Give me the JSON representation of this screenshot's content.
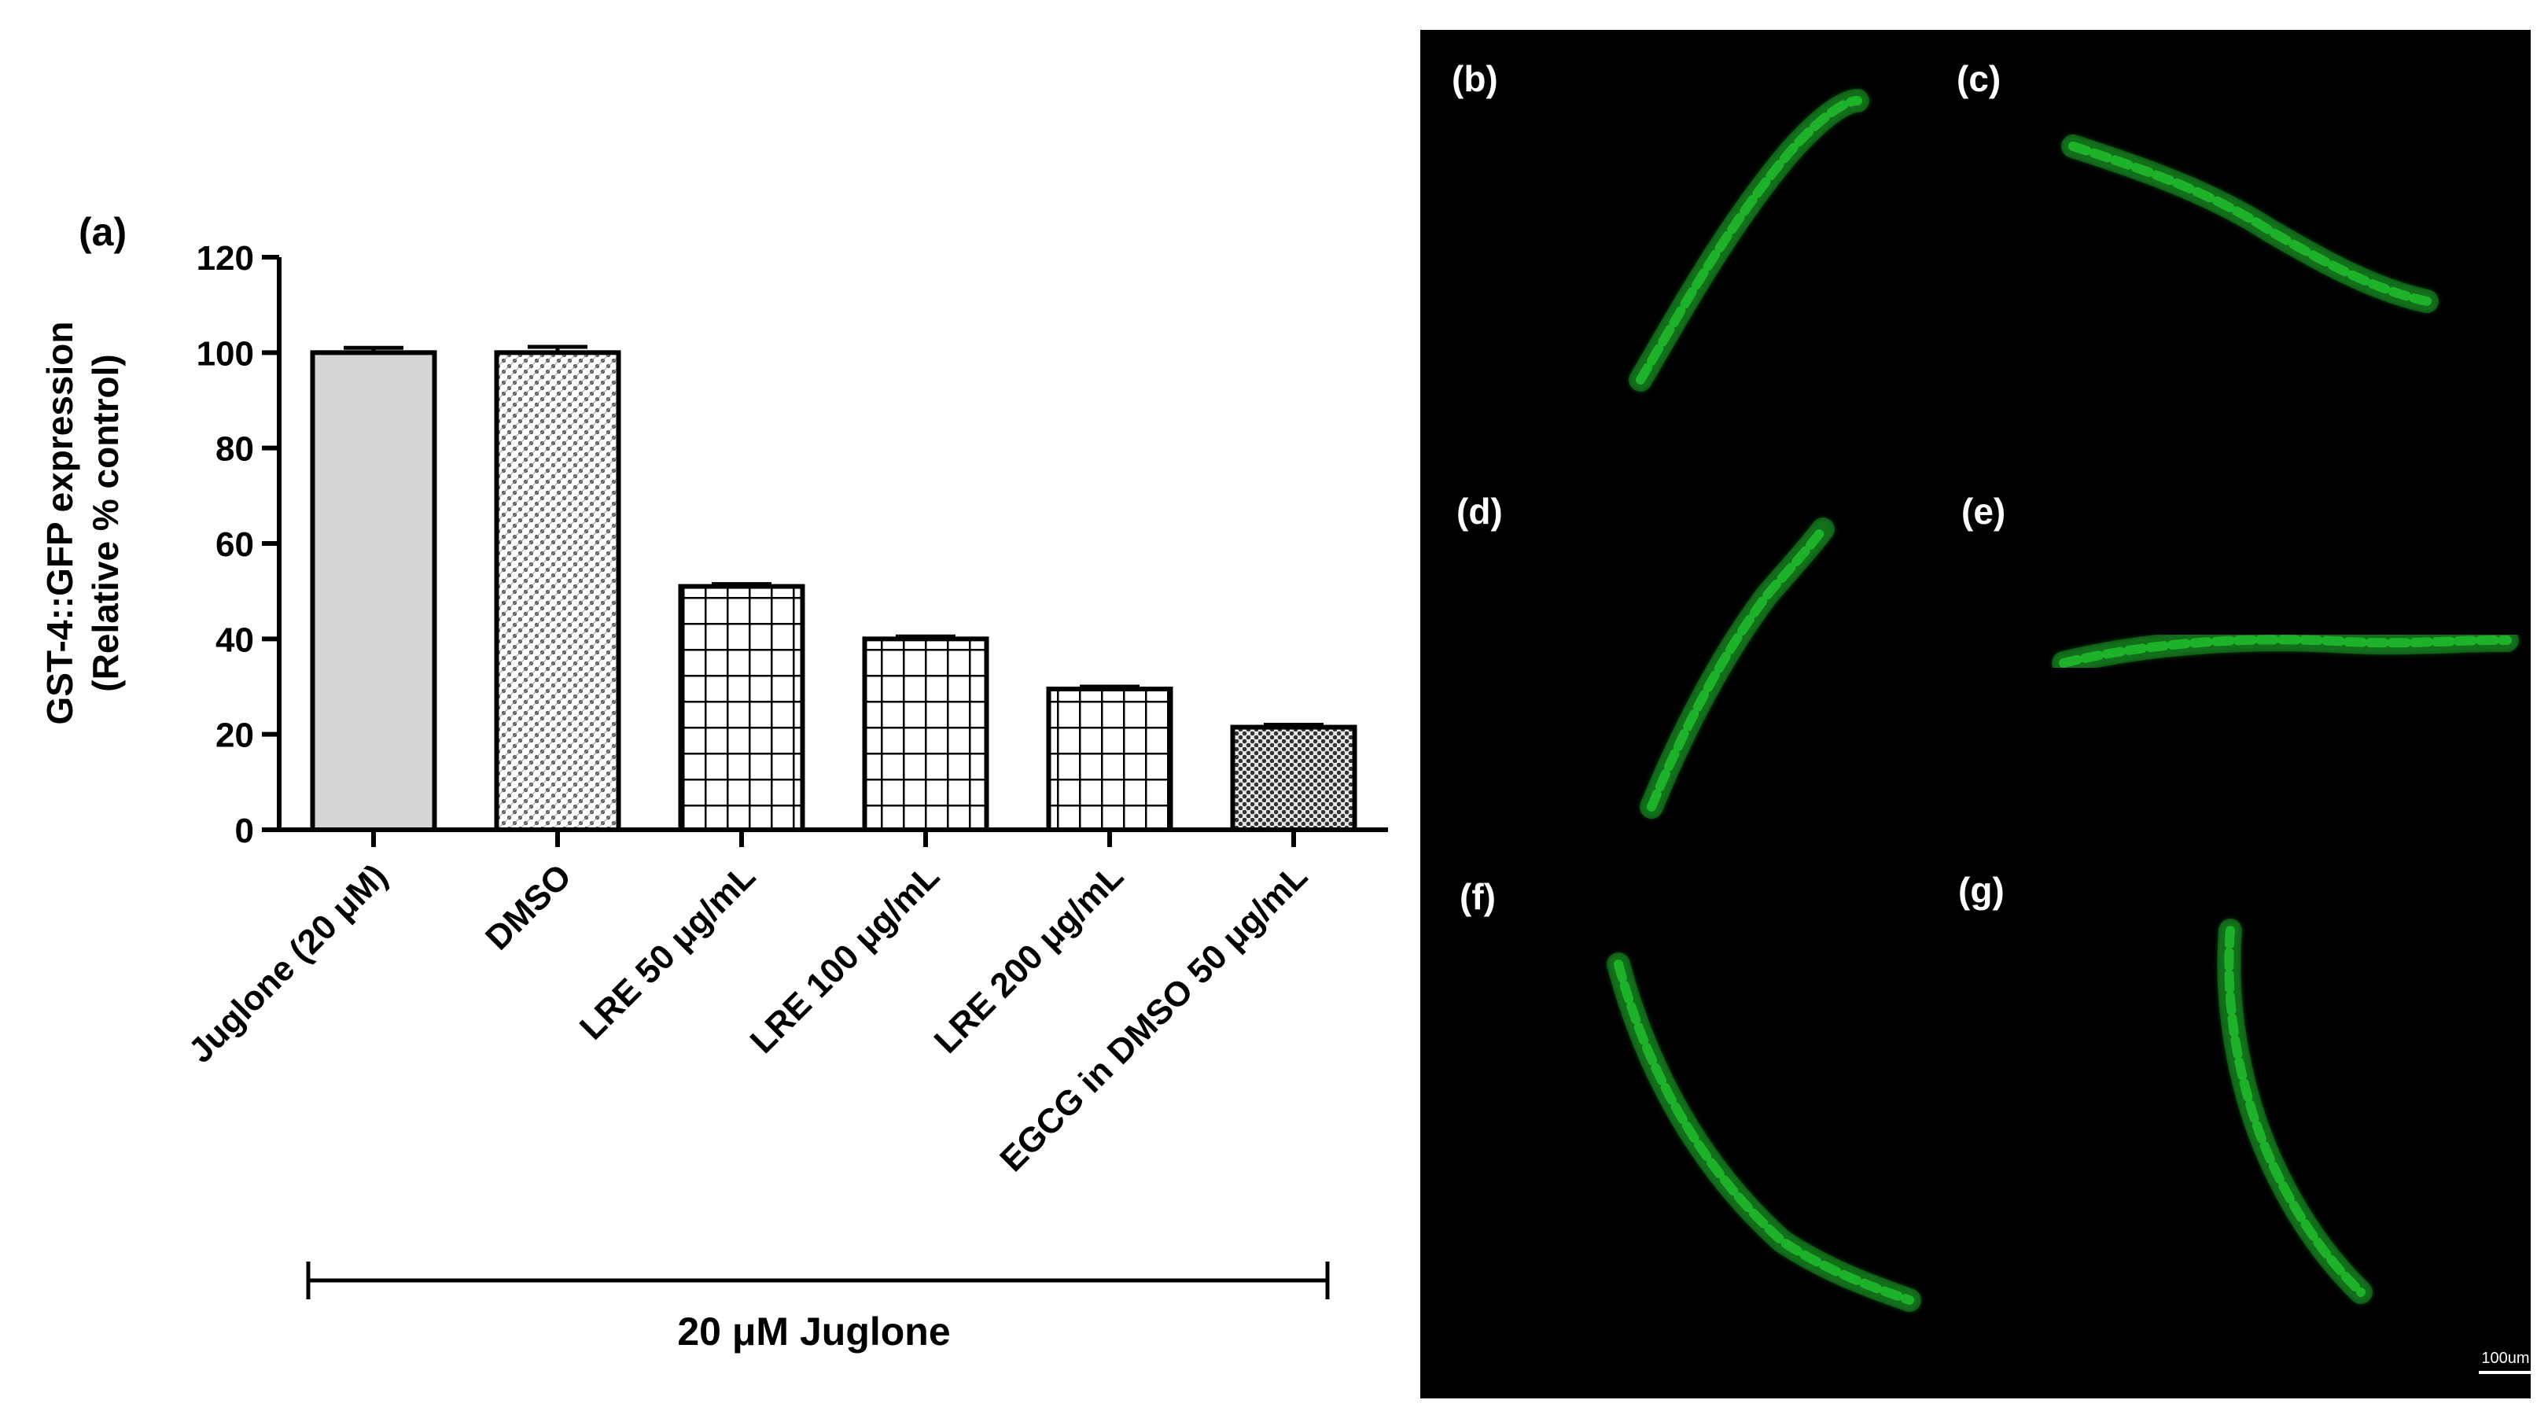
{
  "chart_data": {
    "type": "bar",
    "panel_label": "(a)",
    "ylabel_line1": "GST-4::GFP expression",
    "ylabel_line2": "(Relative % control)",
    "ylim": [
      0,
      120
    ],
    "yticks": [
      "0",
      "20",
      "40",
      "60",
      "80",
      "100",
      "120"
    ],
    "categories": [
      "Juglone (20 μM)",
      "DMSO",
      "LRE 50 μg/mL",
      "LRE 100 μg/mL",
      "LRE 200 μg/mL",
      "EGCG in DMSO 50 μg/mL"
    ],
    "values": [
      100,
      100,
      51,
      40,
      29.5,
      21.5
    ],
    "errors": [
      1.0,
      1.2,
      0.5,
      0.5,
      0.5,
      0.5
    ],
    "patterns": [
      "solid-gray",
      "dots",
      "grid",
      "grid",
      "grid",
      "dense-dots"
    ],
    "group_label": "20 μM Juglone",
    "grid": false
  },
  "micrographs": {
    "panels": [
      {
        "label": "(b)"
      },
      {
        "label": "(c)"
      },
      {
        "label": "(d)"
      },
      {
        "label": "(e)"
      },
      {
        "label": "(f)"
      },
      {
        "label": "(g)"
      }
    ],
    "scale_bar": "100um",
    "fluorescence_color": "#22c22e"
  }
}
